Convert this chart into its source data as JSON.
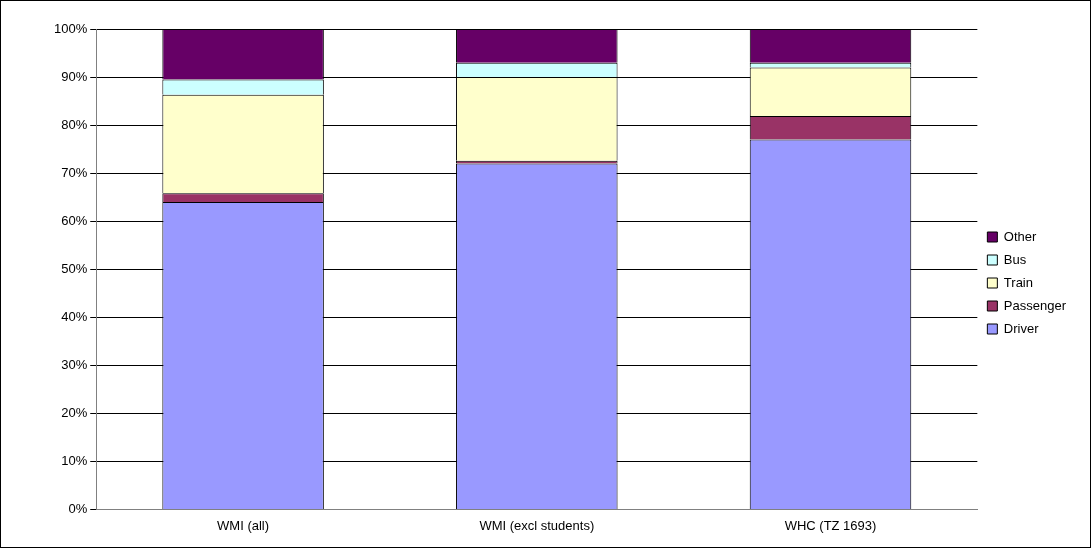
{
  "chart_data": {
    "type": "bar",
    "stacked": true,
    "categories": [
      "WMI (all)",
      "WMI (excl students)",
      "WHC (TZ 1693)"
    ],
    "series": [
      {
        "name": "Driver",
        "color": "#9999ff",
        "values": [
          64,
          72,
          77
        ]
      },
      {
        "name": "Passenger",
        "color": "#993366",
        "values": [
          1.8,
          0.6,
          4.9
        ]
      },
      {
        "name": "Train",
        "color": "#ffffcc",
        "values": [
          20.5,
          17.4,
          10.1
        ]
      },
      {
        "name": "Bus",
        "color": "#ccffff",
        "values": [
          3.2,
          3,
          1
        ]
      },
      {
        "name": "Other",
        "color": "#660066",
        "values": [
          10.5,
          7,
          7
        ]
      }
    ],
    "ylim": [
      0,
      100
    ],
    "yticks": [
      {
        "value": 0,
        "label": "0%"
      },
      {
        "value": 10,
        "label": "10%"
      },
      {
        "value": 20,
        "label": "20%"
      },
      {
        "value": 30,
        "label": "30%"
      },
      {
        "value": 40,
        "label": "40%"
      },
      {
        "value": 50,
        "label": "50%"
      },
      {
        "value": 60,
        "label": "60%"
      },
      {
        "value": 70,
        "label": "70%"
      },
      {
        "value": 80,
        "label": "80%"
      },
      {
        "value": 90,
        "label": "90%"
      },
      {
        "value": 100,
        "label": "100%"
      }
    ],
    "grid": "y",
    "legend": "right"
  }
}
